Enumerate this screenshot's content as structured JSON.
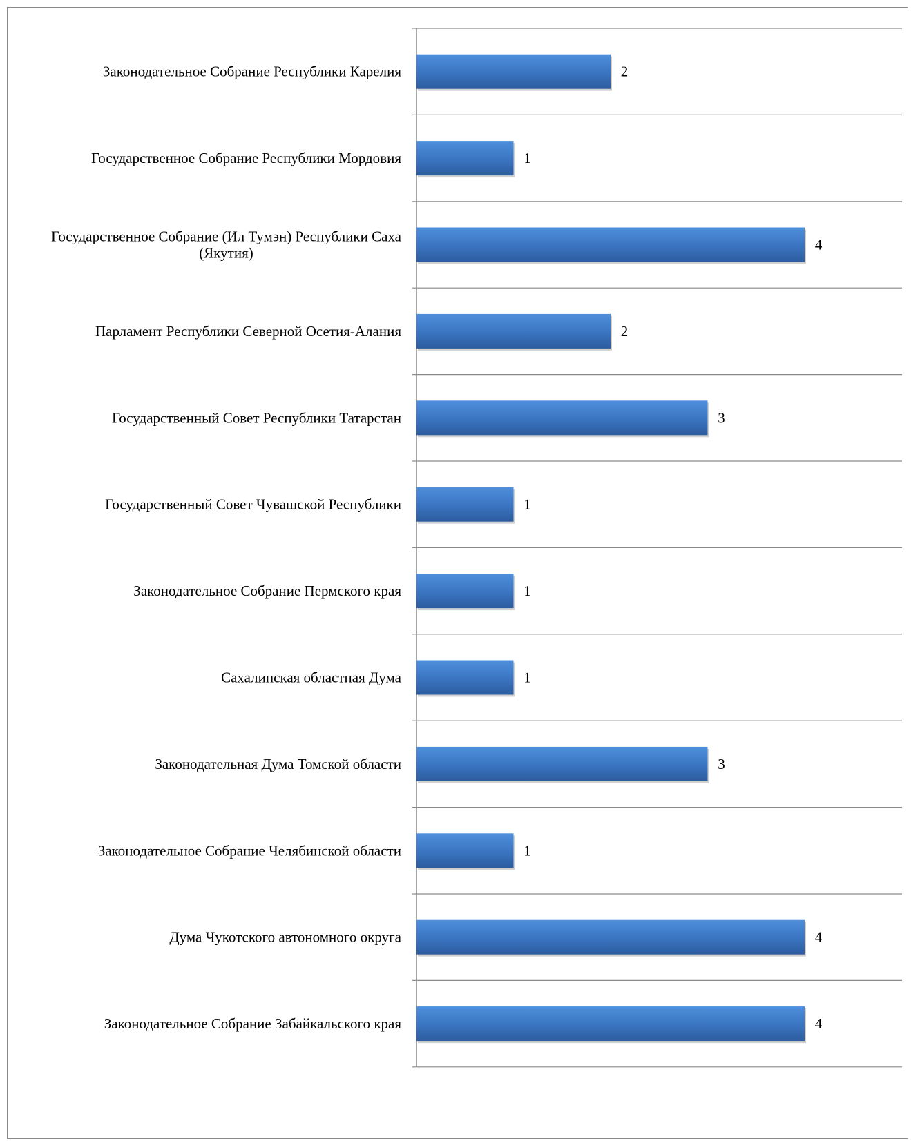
{
  "chart_data": {
    "type": "bar",
    "orientation": "horizontal",
    "title": "",
    "xlabel": "",
    "ylabel": "",
    "xlim": [
      0,
      4
    ],
    "grid": "horizontal category separators",
    "legend": "none",
    "bar_color": "#3e78c4",
    "categories": [
      "Законодательное Собрание Республики Карелия",
      "Государственное Собрание Республики Мордовия",
      "Государственное Собрание (Ил Тумэн) Республики Саха (Якутия)",
      "Парламент Республики Северной Осетия-Алания",
      "Государственный Совет Республики Татарстан",
      "Государственный Совет Чувашской Республики",
      "Законодательное Собрание Пермского края",
      "Сахалинская областная Дума",
      "Законодательная  Дума Томской области",
      "Законодательное Собрание Челябинской области",
      "Дума Чукотского автономного округа",
      "Законодательное Собрание Забайкальского края"
    ],
    "values": [
      2,
      1,
      4,
      2,
      3,
      1,
      1,
      1,
      3,
      1,
      4,
      4
    ],
    "data_labels": [
      "2",
      "1",
      "4",
      "2",
      "3",
      "1",
      "1",
      "1",
      "3",
      "1",
      "4",
      "4"
    ]
  }
}
